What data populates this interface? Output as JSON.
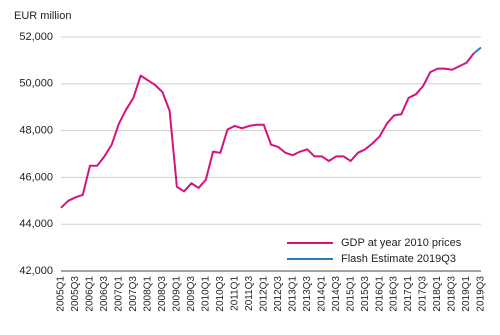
{
  "chart_data": {
    "type": "line",
    "y_label": "EUR million",
    "categories": [
      "2005Q1",
      null,
      "2005Q3",
      null,
      "2006Q1",
      null,
      "2006Q3",
      null,
      "2007Q1",
      null,
      "2007Q3",
      null,
      "2008Q1",
      null,
      "2008Q3",
      null,
      "2009Q1",
      null,
      "2009Q3",
      null,
      "2010Q1",
      null,
      "2010Q3",
      null,
      "2011Q1",
      null,
      "2011Q3",
      null,
      "2012Q1",
      null,
      "2012Q3",
      null,
      "2013Q1",
      null,
      "2013Q3",
      null,
      "2014Q1",
      null,
      "2014Q3",
      null,
      "2015Q1",
      null,
      "2015Q3",
      null,
      "2016Q1",
      null,
      "2016Q3",
      null,
      "2017Q1",
      null,
      "2017Q3",
      null,
      "2018Q1",
      null,
      "2018Q3",
      null,
      "2019Q1",
      null,
      "2019Q3"
    ],
    "series": [
      {
        "name": "GDP at year 2010 prices",
        "color": "#d4137f",
        "values": [
          44700,
          45000,
          45150,
          45250,
          46500,
          46500,
          46900,
          47400,
          48300,
          48900,
          49400,
          50350,
          50150,
          49950,
          49650,
          48850,
          45600,
          45400,
          45750,
          45550,
          45900,
          47100,
          47050,
          48050,
          48200,
          48100,
          48200,
          48250,
          48250,
          47400,
          47300,
          47050,
          46950,
          47100,
          47200,
          46900,
          46900,
          46700,
          46900,
          46900,
          46700,
          47050,
          47200,
          47450,
          47750,
          48300,
          48650,
          48700,
          49400,
          49550,
          49900,
          50500,
          50650,
          50650,
          50600,
          50750,
          50900,
          51300,
          null
        ]
      },
      {
        "name": "Flash Estimate 2019Q3",
        "color": "#2a7ab8",
        "values": [
          null,
          null,
          null,
          null,
          null,
          null,
          null,
          null,
          null,
          null,
          null,
          null,
          null,
          null,
          null,
          null,
          null,
          null,
          null,
          null,
          null,
          null,
          null,
          null,
          null,
          null,
          null,
          null,
          null,
          null,
          null,
          null,
          null,
          null,
          null,
          null,
          null,
          null,
          null,
          null,
          null,
          null,
          null,
          null,
          null,
          null,
          null,
          null,
          null,
          null,
          null,
          null,
          null,
          null,
          null,
          null,
          null,
          51300,
          51550
        ]
      }
    ],
    "ylim": [
      42000,
      52000
    ],
    "yticks": [
      {
        "value": 42000,
        "label": "42,000"
      },
      {
        "value": 44000,
        "label": "44,000"
      },
      {
        "value": 46000,
        "label": "46,000"
      },
      {
        "value": 48000,
        "label": "48,000"
      },
      {
        "value": 50000,
        "label": "50,000"
      },
      {
        "value": 52000,
        "label": "52,000"
      }
    ],
    "grid": true,
    "legend": "lower-right"
  }
}
